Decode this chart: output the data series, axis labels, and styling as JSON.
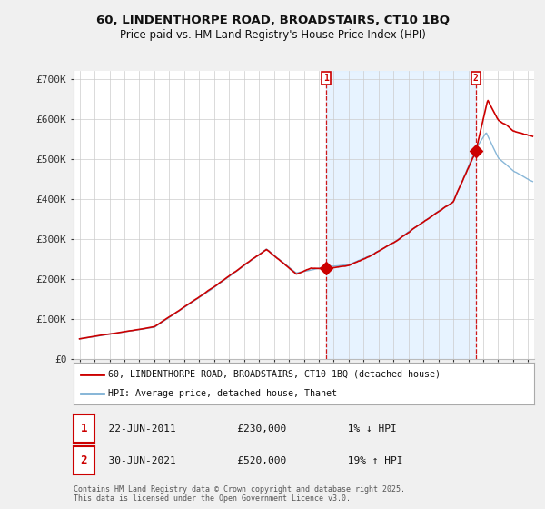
{
  "title_line1": "60, LINDENTHORPE ROAD, BROADSTAIRS, CT10 1BQ",
  "title_line2": "Price paid vs. HM Land Registry's House Price Index (HPI)",
  "legend_line1": "60, LINDENTHORPE ROAD, BROADSTAIRS, CT10 1BQ (detached house)",
  "legend_line2": "HPI: Average price, detached house, Thanet",
  "transaction1_label": "1",
  "transaction1_date": "22-JUN-2011",
  "transaction1_price": "£230,000",
  "transaction1_hpi": "1% ↓ HPI",
  "transaction2_label": "2",
  "transaction2_date": "30-JUN-2021",
  "transaction2_price": "£520,000",
  "transaction2_hpi": "19% ↑ HPI",
  "footnote": "Contains HM Land Registry data © Crown copyright and database right 2025.\nThis data is licensed under the Open Government Licence v3.0.",
  "ylim": [
    0,
    720000
  ],
  "yticks": [
    0,
    100000,
    200000,
    300000,
    400000,
    500000,
    600000,
    700000
  ],
  "ytick_labels": [
    "£0",
    "£100K",
    "£200K",
    "£300K",
    "£400K",
    "£500K",
    "£600K",
    "£700K"
  ],
  "red_color": "#cc0000",
  "blue_color": "#7bafd4",
  "blue_fill_color": "#ddeeff",
  "background_color": "#f0f0f0",
  "plot_bg_color": "#ffffff",
  "grid_color": "#cccccc",
  "transaction1_year": 2011.47,
  "transaction2_year": 2021.49,
  "xlim_left": 1994.6,
  "xlim_right": 2025.4
}
